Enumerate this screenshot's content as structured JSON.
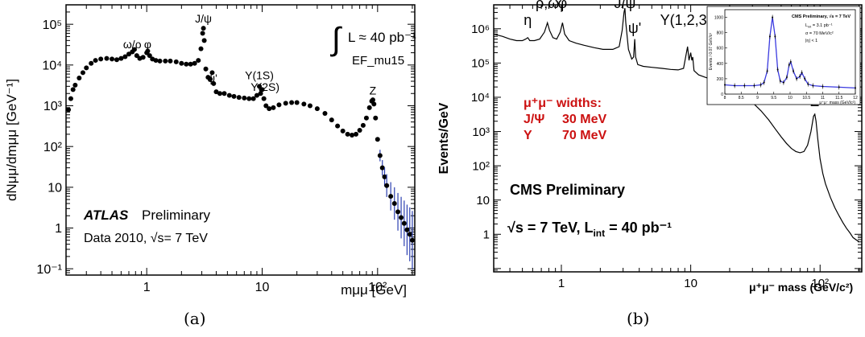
{
  "chart_data": [
    {
      "panel_caption": "(a)",
      "type": "scatter",
      "xscale": "log",
      "yscale": "log",
      "xlim": [
        0.2,
        210
      ],
      "ylim": [
        0.07,
        300000
      ],
      "xlabel": "mμμ [GeV]",
      "ylabel": "dNμμ/dmμμ [GeV⁻¹]",
      "x_ticks": [
        {
          "v": 1,
          "label": "1"
        },
        {
          "v": 10,
          "label": "10"
        },
        {
          "v": 100,
          "label": "10²"
        }
      ],
      "y_ticks": [
        {
          "v": 0.1,
          "label": "10⁻¹"
        },
        {
          "v": 1,
          "label": "1"
        },
        {
          "v": 10,
          "label": "10"
        },
        {
          "v": 100,
          "label": "10²"
        },
        {
          "v": 1000,
          "label": "10³"
        },
        {
          "v": 10000,
          "label": "10⁴"
        },
        {
          "v": 100000,
          "label": "10⁵"
        }
      ],
      "lumi_label": "L ≈ 40 pb⁻¹",
      "trigger_label": "EF_mu15",
      "experiment_label": "ATLAS",
      "status_label": "Preliminary",
      "data_label": "Data 2010, √s= 7 TeV",
      "annotations": [
        {
          "text": "ω/ρ",
          "x": 0.75,
          "y": 26000
        },
        {
          "text": "φ",
          "x": 1.02,
          "y": 26000
        },
        {
          "text": "J/ψ",
          "x": 3.1,
          "y": 110000
        },
        {
          "text": "ψ'",
          "x": 3.69,
          "y": 3800
        },
        {
          "text": "Υ(1S)",
          "x": 9.46,
          "y": 4500
        },
        {
          "text": "Υ(2S)",
          "x": 10.6,
          "y": 2300
        },
        {
          "text": "Z",
          "x": 91,
          "y": 1900
        }
      ],
      "points": [
        [
          0.21,
          800
        ],
        [
          0.22,
          1500
        ],
        [
          0.23,
          2500
        ],
        [
          0.24,
          3200
        ],
        [
          0.26,
          4800
        ],
        [
          0.28,
          6500
        ],
        [
          0.3,
          8500
        ],
        [
          0.33,
          11000
        ],
        [
          0.36,
          13000
        ],
        [
          0.4,
          14000
        ],
        [
          0.45,
          14500
        ],
        [
          0.5,
          14000
        ],
        [
          0.55,
          13500
        ],
        [
          0.6,
          14500
        ],
        [
          0.65,
          16000
        ],
        [
          0.7,
          18500
        ],
        [
          0.75,
          21000
        ],
        [
          0.78,
          24000
        ],
        [
          0.82,
          17000
        ],
        [
          0.87,
          14500
        ],
        [
          0.93,
          15500
        ],
        [
          1.0,
          20000
        ],
        [
          1.02,
          22000
        ],
        [
          1.06,
          17000
        ],
        [
          1.12,
          14000
        ],
        [
          1.2,
          13000
        ],
        [
          1.3,
          12500
        ],
        [
          1.45,
          12500
        ],
        [
          1.6,
          12500
        ],
        [
          1.8,
          12000
        ],
        [
          2.0,
          11000
        ],
        [
          2.2,
          10500
        ],
        [
          2.4,
          10500
        ],
        [
          2.6,
          11000
        ],
        [
          2.8,
          13000
        ],
        [
          2.95,
          25000
        ],
        [
          3.05,
          60000
        ],
        [
          3.1,
          80000
        ],
        [
          3.15,
          40000
        ],
        [
          3.25,
          8000
        ],
        [
          3.4,
          5000
        ],
        [
          3.55,
          4500
        ],
        [
          3.69,
          6500
        ],
        [
          3.8,
          3500
        ],
        [
          4.0,
          2200
        ],
        [
          4.3,
          2000
        ],
        [
          4.7,
          2000
        ],
        [
          5.2,
          1800
        ],
        [
          5.7,
          1700
        ],
        [
          6.3,
          1600
        ],
        [
          7.0,
          1550
        ],
        [
          7.7,
          1500
        ],
        [
          8.4,
          1500
        ],
        [
          9.0,
          1800
        ],
        [
          9.46,
          3000
        ],
        [
          9.7,
          2000
        ],
        [
          10.0,
          2500
        ],
        [
          10.35,
          1500
        ],
        [
          10.8,
          1000
        ],
        [
          11.5,
          850
        ],
        [
          12.5,
          900
        ],
        [
          14.0,
          1050
        ],
        [
          16.0,
          1150
        ],
        [
          18.0,
          1200
        ],
        [
          20.0,
          1200
        ],
        [
          23.0,
          1100
        ],
        [
          26.0,
          1000
        ],
        [
          30.0,
          850
        ],
        [
          35.0,
          650
        ],
        [
          40.0,
          450
        ],
        [
          45.0,
          320
        ],
        [
          50.0,
          240
        ],
        [
          55.0,
          200
        ],
        [
          60.0,
          190
        ],
        [
          65.0,
          200
        ],
        [
          70.0,
          250
        ],
        [
          75.0,
          330
        ],
        [
          80.0,
          500
        ],
        [
          85.0,
          900
        ],
        [
          89.0,
          1300
        ],
        [
          91.0,
          1400
        ],
        [
          93.0,
          1100
        ],
        [
          96.0,
          500
        ],
        [
          100.0,
          150
        ],
        [
          105.0,
          60
        ],
        [
          110.0,
          30
        ],
        [
          115.0,
          18
        ],
        [
          120.0,
          11
        ],
        [
          130.0,
          6
        ],
        [
          140.0,
          4
        ],
        [
          150.0,
          2.5
        ],
        [
          160.0,
          1.8
        ],
        [
          170.0,
          1.3
        ],
        [
          180.0,
          0.9
        ],
        [
          190.0,
          0.7
        ],
        [
          200.0,
          0.5
        ]
      ]
    },
    {
      "panel_caption": "(b)",
      "type": "line",
      "xscale": "log",
      "yscale": "log",
      "xlim": [
        0.3,
        210
      ],
      "ylim": [
        0.08,
        5000000
      ],
      "xlabel": "μ⁺μ⁻ mass (GeV/c²)",
      "ylabel": "Events/GeV",
      "x_ticks": [
        {
          "v": 1,
          "label": "1"
        },
        {
          "v": 10,
          "label": "10"
        },
        {
          "v": 100,
          "label": "10²"
        }
      ],
      "y_ticks": [
        {
          "v": 1,
          "label": "1"
        },
        {
          "v": 10,
          "label": "10"
        },
        {
          "v": 100,
          "label": "10²"
        },
        {
          "v": 1000,
          "label": "10³"
        },
        {
          "v": 10000,
          "label": "10⁴"
        },
        {
          "v": 100000,
          "label": "10⁵"
        },
        {
          "v": 1000000,
          "label": "10⁶"
        }
      ],
      "experiment_label": "CMS Preliminary",
      "energy_label": "√s = 7 TeV,  L",
      "lumi_sub": "int",
      "lumi_value": " = 40 pb⁻¹",
      "widths_title": "μ⁺μ⁻ widths:",
      "widths": [
        {
          "particle": "J/Ψ",
          "width": "30 MeV"
        },
        {
          "particle": "Υ",
          "width": "70 MeV"
        }
      ],
      "annotations": [
        {
          "text": "η",
          "x": 0.55,
          "y": 1300000
        },
        {
          "text": "ρ,ω",
          "x": 0.78,
          "y": 4000000
        },
        {
          "text": "φ",
          "x": 1.02,
          "y": 4000000
        },
        {
          "text": "J/ψ",
          "x": 3.1,
          "y": 4000000
        },
        {
          "text": "ψ'",
          "x": 3.69,
          "y": 750000
        },
        {
          "text": "Υ(1,2,3S)",
          "x": 10,
          "y": 1300000
        },
        {
          "text": "Z",
          "x": 91,
          "y": 5500
        }
      ],
      "points": [
        [
          0.3,
          700000
        ],
        [
          0.35,
          600000
        ],
        [
          0.4,
          500000
        ],
        [
          0.45,
          450000
        ],
        [
          0.5,
          450000
        ],
        [
          0.53,
          500000
        ],
        [
          0.55,
          550000
        ],
        [
          0.57,
          450000
        ],
        [
          0.62,
          450000
        ],
        [
          0.68,
          500000
        ],
        [
          0.74,
          800000
        ],
        [
          0.78,
          1500000
        ],
        [
          0.81,
          900000
        ],
        [
          0.86,
          550000
        ],
        [
          0.92,
          500000
        ],
        [
          0.98,
          800000
        ],
        [
          1.02,
          1500000
        ],
        [
          1.06,
          700000
        ],
        [
          1.15,
          450000
        ],
        [
          1.3,
          380000
        ],
        [
          1.5,
          330000
        ],
        [
          1.8,
          280000
        ],
        [
          2.1,
          250000
        ],
        [
          2.5,
          250000
        ],
        [
          2.8,
          300000
        ],
        [
          2.95,
          900000
        ],
        [
          3.05,
          3000000
        ],
        [
          3.1,
          4000000
        ],
        [
          3.15,
          1500000
        ],
        [
          3.3,
          250000
        ],
        [
          3.5,
          130000
        ],
        [
          3.62,
          150000
        ],
        [
          3.69,
          500000
        ],
        [
          3.75,
          150000
        ],
        [
          3.9,
          90000
        ],
        [
          4.3,
          80000
        ],
        [
          5.0,
          75000
        ],
        [
          6.0,
          70000
        ],
        [
          7.0,
          65000
        ],
        [
          8.0,
          63000
        ],
        [
          8.8,
          70000
        ],
        [
          9.46,
          300000
        ],
        [
          9.7,
          120000
        ],
        [
          10.0,
          200000
        ],
        [
          10.2,
          120000
        ],
        [
          10.36,
          150000
        ],
        [
          10.6,
          60000
        ],
        [
          11.5,
          45000
        ],
        [
          13.0,
          38000
        ],
        [
          15.0,
          32000
        ],
        [
          18.0,
          25000
        ],
        [
          22.0,
          17000
        ],
        [
          26.0,
          11000
        ],
        [
          30.0,
          7000
        ],
        [
          35.0,
          4000
        ],
        [
          40.0,
          2200
        ],
        [
          45.0,
          1200
        ],
        [
          50.0,
          700
        ],
        [
          55.0,
          450
        ],
        [
          60.0,
          320
        ],
        [
          65.0,
          260
        ],
        [
          70.0,
          240
        ],
        [
          75.0,
          260
        ],
        [
          80.0,
          400
        ],
        [
          85.0,
          1000
        ],
        [
          89.0,
          2800
        ],
        [
          91.0,
          3200
        ],
        [
          93.0,
          2000
        ],
        [
          96.0,
          600
        ],
        [
          100.0,
          160
        ],
        [
          105.0,
          60
        ],
        [
          110.0,
          30
        ],
        [
          120.0,
          12
        ],
        [
          130.0,
          6
        ],
        [
          140.0,
          3.5
        ],
        [
          150.0,
          2.2
        ],
        [
          160.0,
          1.5
        ],
        [
          170.0,
          1.1
        ],
        [
          180.0,
          0.8
        ],
        [
          200.0,
          0.6
        ]
      ],
      "inset": {
        "type": "line",
        "title": "CMS Preliminary, √s = 7 TeV",
        "ylabel": "Events / 0.07 GeV/c²",
        "xlabel": "μ⁺μ⁻ mass (GeV/c²)",
        "legend_lines": [
          "L",
          "σ = 70 MeV/c²",
          "|η| < 1"
        ],
        "legend_lumi_sub": "int",
        "legend_lumi_value": " = 3.1 pb⁻¹",
        "xlim": [
          8,
          12
        ],
        "ylim": [
          0,
          1100
        ],
        "x_ticks": [
          {
            "v": 8,
            "label": "8"
          },
          {
            "v": 8.5,
            "label": "8.5"
          },
          {
            "v": 9,
            "label": "9"
          },
          {
            "v": 9.5,
            "label": "9.5"
          },
          {
            "v": 10,
            "label": "10"
          },
          {
            "v": 10.5,
            "label": "10.5"
          },
          {
            "v": 11,
            "label": "11"
          },
          {
            "v": 11.5,
            "label": "11.5"
          },
          {
            "v": 12,
            "label": "12"
          }
        ],
        "y_ticks": [
          {
            "v": 0,
            "label": "0"
          },
          {
            "v": 200,
            "label": "200"
          },
          {
            "v": 400,
            "label": "400"
          },
          {
            "v": 600,
            "label": "600"
          },
          {
            "v": 800,
            "label": "800"
          },
          {
            "v": 1000,
            "label": "1000"
          }
        ],
        "points": [
          [
            8.0,
            120
          ],
          [
            8.3,
            110
          ],
          [
            8.6,
            110
          ],
          [
            8.9,
            110
          ],
          [
            9.1,
            120
          ],
          [
            9.2,
            150
          ],
          [
            9.3,
            300
          ],
          [
            9.38,
            750
          ],
          [
            9.46,
            1000
          ],
          [
            9.54,
            750
          ],
          [
            9.62,
            320
          ],
          [
            9.7,
            170
          ],
          [
            9.8,
            150
          ],
          [
            9.9,
            220
          ],
          [
            9.97,
            380
          ],
          [
            10.02,
            420
          ],
          [
            10.1,
            300
          ],
          [
            10.2,
            200
          ],
          [
            10.3,
            230
          ],
          [
            10.36,
            280
          ],
          [
            10.45,
            200
          ],
          [
            10.55,
            130
          ],
          [
            10.7,
            110
          ],
          [
            11.0,
            100
          ],
          [
            11.5,
            90
          ],
          [
            12.0,
            80
          ]
        ]
      }
    }
  ]
}
